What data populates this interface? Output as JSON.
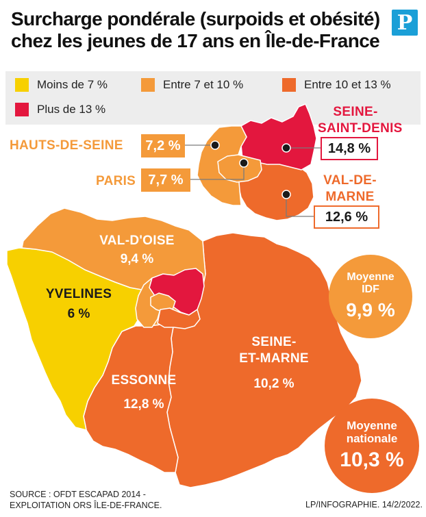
{
  "title": {
    "line1": "Surcharge pondérale (surpoids et obésité)",
    "line2": "chez les jeunes de 17 ans en Île-de-France"
  },
  "logo": {
    "letter": "P",
    "color": "#1b9fd7"
  },
  "legend": [
    {
      "label": "Moins de 7 %",
      "color": "#f7d000"
    },
    {
      "label": "Entre 7 et 10 %",
      "color": "#f49a3a"
    },
    {
      "label": "Entre 10 et 13 %",
      "color": "#ee6a2b"
    },
    {
      "label": "Plus de 13 %",
      "color": "#e3173e"
    }
  ],
  "departments": {
    "hauts_de_seine": {
      "name": "HAUTS-DE-SEINE",
      "value": "7,2 %",
      "color": "#f49a3a"
    },
    "paris": {
      "name": "PARIS",
      "value": "7,7 %",
      "color": "#f49a3a"
    },
    "seine_saint_denis": {
      "name_line1": "SEINE-",
      "name_line2": "SAINT-DENIS",
      "value": "14,8 %",
      "color": "#e3173e"
    },
    "val_de_marne": {
      "name_line1": "VAL-DE-",
      "name_line2": "MARNE",
      "value": "12,6 %",
      "color": "#ee6a2b"
    },
    "val_d_oise": {
      "name": "VAL-D'OISE",
      "value": "9,4 %",
      "color": "#f49a3a"
    },
    "yvelines": {
      "name": "YVELINES",
      "value": "6 %",
      "color": "#f7d000"
    },
    "essonne": {
      "name": "ESSONNE",
      "value": "12,8 %",
      "color": "#ee6a2b"
    },
    "seine_et_marne": {
      "name_line1": "SEINE-",
      "name_line2": "ET-MARNE",
      "value": "10,2 %",
      "color": "#ee6a2b"
    }
  },
  "averages": {
    "idf": {
      "line1": "Moyenne",
      "line2": "IDF",
      "value": "9,9 %",
      "color": "#f49a3a"
    },
    "national": {
      "line1": "Moyenne",
      "line2": "nationale",
      "value": "10,3 %",
      "color": "#ee6a2b"
    }
  },
  "source": {
    "line1": "Source : OFDT ESCAPAD 2014 -",
    "line2": "exploitation ORS Île-de-France."
  },
  "credit": "LP/Infographie.  14/2/2022."
}
